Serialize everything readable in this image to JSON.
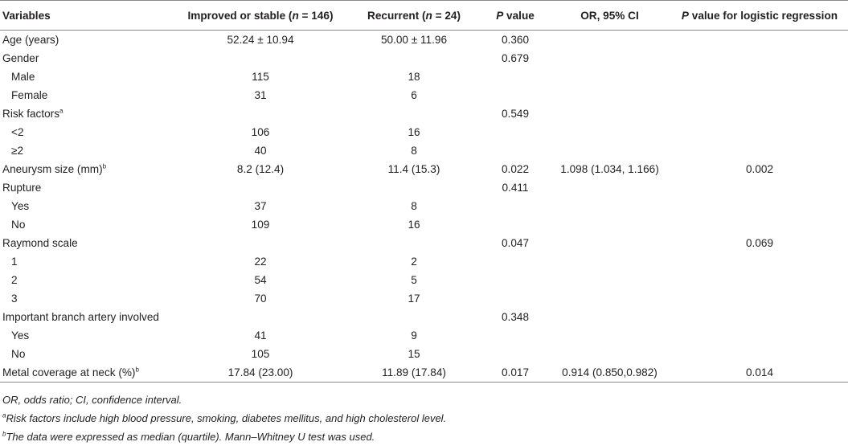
{
  "headers": {
    "variables": "Variables",
    "improved": "Improved or stable (n = 146)",
    "recurrent": "Recurrent (n = 24)",
    "p_value": "P value",
    "or_ci": "OR, 95% CI",
    "p_logistic": "P value for logistic regression"
  },
  "rows": [
    {
      "label": "Age (years)",
      "improved": "52.24 ± 10.94",
      "recurrent": "50.00 ± 11.96",
      "p": "0.360",
      "or": "",
      "pl": ""
    },
    {
      "label": "Gender",
      "improved": "",
      "recurrent": "",
      "p": "0.679",
      "or": "",
      "pl": ""
    },
    {
      "label": "Male",
      "improved": "115",
      "recurrent": "18",
      "p": "",
      "or": "",
      "pl": ""
    },
    {
      "label": "Female",
      "improved": "31",
      "recurrent": "6",
      "p": "",
      "or": "",
      "pl": ""
    },
    {
      "label": "Risk factors",
      "sup": "a",
      "improved": "",
      "recurrent": "",
      "p": "0.549",
      "or": "",
      "pl": ""
    },
    {
      "label": "<2",
      "improved": "106",
      "recurrent": "16",
      "p": "",
      "or": "",
      "pl": ""
    },
    {
      "label": "≥2",
      "improved": "40",
      "recurrent": "8",
      "p": "",
      "or": "",
      "pl": ""
    },
    {
      "label": "Aneurysm size (mm)",
      "sup": "b",
      "improved": "8.2 (12.4)",
      "recurrent": "11.4 (15.3)",
      "p": "0.022",
      "or": "1.098 (1.034, 1.166)",
      "pl": "0.002"
    },
    {
      "label": "Rupture",
      "improved": "",
      "recurrent": "",
      "p": "0.411",
      "or": "",
      "pl": ""
    },
    {
      "label": "Yes",
      "improved": "37",
      "recurrent": "8",
      "p": "",
      "or": "",
      "pl": ""
    },
    {
      "label": "No",
      "improved": "109",
      "recurrent": "16",
      "p": "",
      "or": "",
      "pl": ""
    },
    {
      "label": "Raymond scale",
      "improved": "",
      "recurrent": "",
      "p": "0.047",
      "or": "",
      "pl": "0.069"
    },
    {
      "label": "1",
      "improved": "22",
      "recurrent": "2",
      "p": "",
      "or": "",
      "pl": ""
    },
    {
      "label": "2",
      "improved": "54",
      "recurrent": "5",
      "p": "",
      "or": "",
      "pl": ""
    },
    {
      "label": "3",
      "improved": "70",
      "recurrent": "17",
      "p": "",
      "or": "",
      "pl": ""
    },
    {
      "label": "Important branch artery involved",
      "improved": "",
      "recurrent": "",
      "p": "0.348",
      "or": "",
      "pl": ""
    },
    {
      "label": "Yes",
      "improved": "41",
      "recurrent": "9",
      "p": "",
      "or": "",
      "pl": ""
    },
    {
      "label": "No",
      "improved": "105",
      "recurrent": "15",
      "p": "",
      "or": "",
      "pl": ""
    },
    {
      "label": "Metal coverage at neck (%)",
      "sup": "b",
      "improved": "17.84 (23.00)",
      "recurrent": "11.89 (17.84)",
      "p": "0.017",
      "or": "0.914 (0.850,0.982)",
      "pl": "0.014"
    }
  ],
  "notes": {
    "abbrev": "OR, odds ratio; CI, confidence interval.",
    "a_mark": "a",
    "a_text": "Risk factors include high blood pressure, smoking, diabetes mellitus, and high cholesterol level.",
    "b_mark": "b",
    "b_text": "The data were expressed as median (quartile). Mann–Whitney U test was used."
  }
}
